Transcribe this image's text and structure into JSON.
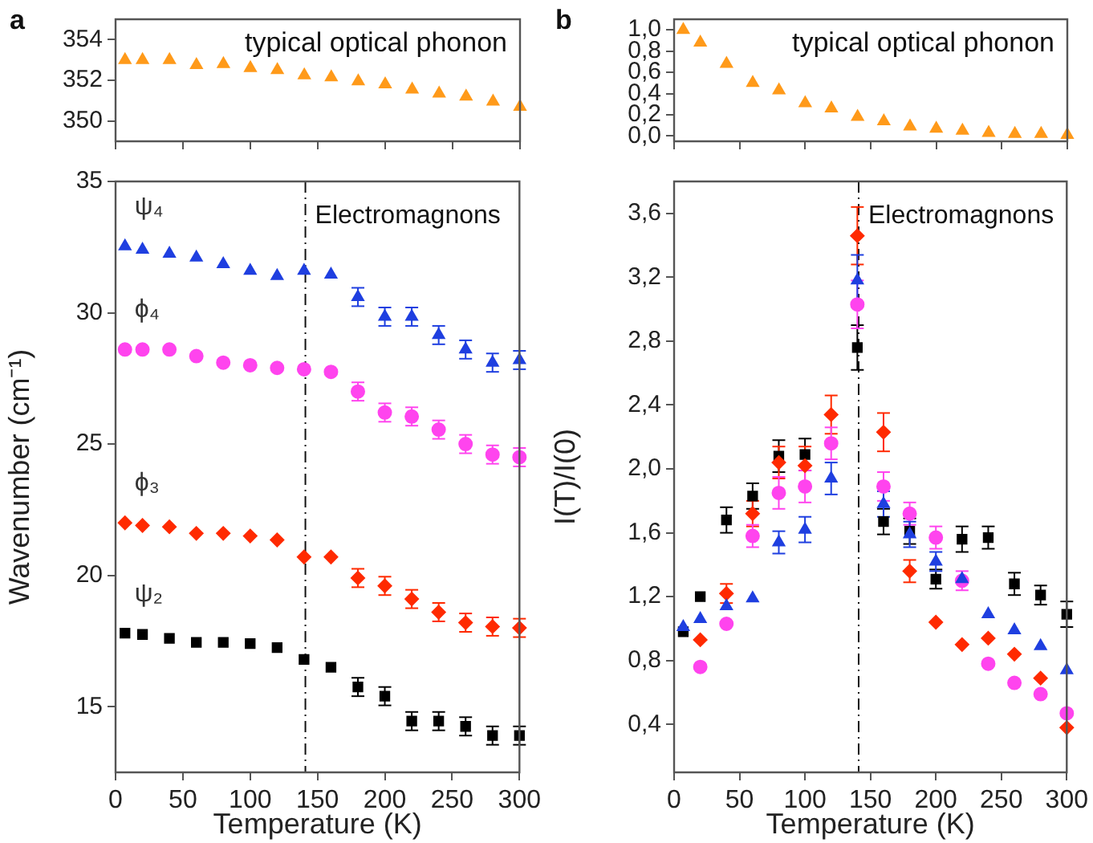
{
  "chart_data": [
    {
      "type": "scatter",
      "title": "typical optical phonon",
      "annotations": [
        "a"
      ],
      "x": [
        7,
        20,
        40,
        60,
        80,
        100,
        120,
        140,
        160,
        180,
        200,
        220,
        240,
        260,
        280,
        300
      ],
      "xlim": [
        0,
        300
      ],
      "xticks": [
        0,
        50,
        100,
        150,
        200,
        250,
        300
      ],
      "ylim": [
        349,
        355
      ],
      "yticks": [
        350,
        352,
        354
      ],
      "tick_labels": "y",
      "grid": false,
      "legend": false,
      "marker": "triangle",
      "series": [
        {
          "color": "#ff9a1a",
          "values": [
            353.0,
            353.0,
            353.0,
            352.75,
            352.8,
            352.6,
            352.5,
            352.25,
            352.15,
            351.95,
            351.8,
            351.55,
            351.35,
            351.2,
            350.95,
            350.7
          ]
        }
      ]
    },
    {
      "type": "scatter",
      "xlabel": "Temperature (K)",
      "ylabel": "Wavenumber (cm⁻¹)",
      "x": [
        7,
        20,
        40,
        60,
        80,
        100,
        120,
        140,
        160,
        180,
        200,
        220,
        240,
        260,
        280,
        300
      ],
      "xlim": [
        0,
        300
      ],
      "xticks": [
        0,
        50,
        100,
        150,
        200,
        250,
        300
      ],
      "ylim": [
        12.5,
        35
      ],
      "yticks": [
        15,
        20,
        25,
        30,
        35
      ],
      "grid": false,
      "legend": false,
      "ref_lines": [
        {
          "axis": "x",
          "value": 141,
          "label": "Electromagnons",
          "line_style": "dashdot"
        }
      ],
      "series": [
        {
          "name": "ψ₄",
          "color": "#1f3fe0",
          "marker": "triangle",
          "values": [
            32.53,
            32.4,
            32.25,
            32.1,
            31.85,
            31.6,
            31.4,
            31.6,
            31.45,
            30.6,
            29.85,
            29.85,
            29.15,
            28.6,
            28.1,
            28.2
          ],
          "errors": [
            null,
            null,
            null,
            null,
            null,
            null,
            null,
            null,
            null,
            0.35,
            0.35,
            0.35,
            0.35,
            0.35,
            0.35,
            0.35
          ]
        },
        {
          "name": "ϕ₄",
          "color": "#ff44ee",
          "marker": "circle",
          "values": [
            28.6,
            28.6,
            28.6,
            28.35,
            28.1,
            28.0,
            27.9,
            27.85,
            27.75,
            27.0,
            26.2,
            26.05,
            25.55,
            25.0,
            24.6,
            24.5
          ],
          "errors": [
            null,
            null,
            null,
            null,
            null,
            null,
            null,
            null,
            null,
            0.35,
            0.35,
            0.35,
            0.35,
            0.35,
            0.35,
            0.35
          ]
        },
        {
          "name": "ϕ₃",
          "color": "#ff2a00",
          "marker": "diamond",
          "values": [
            22.0,
            21.9,
            21.85,
            21.6,
            21.6,
            21.5,
            21.35,
            20.7,
            20.7,
            19.9,
            19.6,
            19.1,
            18.6,
            18.2,
            18.05,
            18.0
          ],
          "errors": [
            null,
            null,
            null,
            null,
            null,
            null,
            null,
            null,
            null,
            0.35,
            0.35,
            0.35,
            0.35,
            0.35,
            0.35,
            0.35
          ]
        },
        {
          "name": "ψ₂",
          "color": "#000000",
          "marker": "square",
          "values": [
            17.8,
            17.75,
            17.6,
            17.45,
            17.45,
            17.4,
            17.25,
            16.8,
            16.5,
            15.75,
            15.4,
            14.45,
            14.45,
            14.25,
            13.9,
            13.9
          ],
          "errors": [
            null,
            null,
            null,
            null,
            null,
            null,
            null,
            null,
            null,
            0.35,
            0.35,
            0.35,
            0.35,
            0.35,
            0.35,
            0.35
          ]
        }
      ]
    },
    {
      "type": "scatter",
      "title": "typical optical phonon",
      "annotations": [
        "b"
      ],
      "x": [
        7,
        20,
        40,
        60,
        80,
        100,
        120,
        140,
        160,
        180,
        200,
        220,
        240,
        260,
        280,
        300
      ],
      "xlim": [
        0,
        300
      ],
      "xticks": [
        0,
        50,
        100,
        150,
        200,
        250,
        300
      ],
      "ylim": [
        -0.05,
        1.1
      ],
      "yticks": [
        {
          "value": 0,
          "label": "0,0"
        },
        {
          "value": 0.2,
          "label": "0,2"
        },
        {
          "value": 0.4,
          "label": "0,4"
        },
        {
          "value": 0.6,
          "label": "0,6"
        },
        {
          "value": 0.8,
          "label": "0,8"
        },
        {
          "value": 1.0,
          "label": "1,0"
        }
      ],
      "tick_labels": "y",
      "grid": false,
      "legend": false,
      "marker": "triangle",
      "series": [
        {
          "color": "#ff9a1a",
          "values": [
            1.0,
            0.88,
            0.68,
            0.5,
            0.43,
            0.31,
            0.26,
            0.18,
            0.14,
            0.09,
            0.07,
            0.05,
            0.03,
            0.02,
            0.02,
            0.01
          ]
        }
      ]
    },
    {
      "type": "scatter",
      "xlabel": "Temperature (K)",
      "ylabel": "I(T)/I(0)",
      "x": [
        7,
        20,
        40,
        60,
        80,
        100,
        120,
        140,
        160,
        180,
        200,
        220,
        240,
        260,
        280,
        300
      ],
      "xlim": [
        0,
        300
      ],
      "xticks": [
        0,
        50,
        100,
        150,
        200,
        250,
        300
      ],
      "ylim": [
        0.1,
        3.8
      ],
      "yticks": [
        {
          "value": 0.4,
          "label": "0,4"
        },
        {
          "value": 0.8,
          "label": "0,8"
        },
        {
          "value": 1.2,
          "label": "1,2"
        },
        {
          "value": 1.6,
          "label": "1,6"
        },
        {
          "value": 2.0,
          "label": "2,0"
        },
        {
          "value": 2.4,
          "label": "2,4"
        },
        {
          "value": 2.8,
          "label": "2,8"
        },
        {
          "value": 3.2,
          "label": "3,2"
        },
        {
          "value": 3.6,
          "label": "3,6"
        }
      ],
      "grid": false,
      "legend": false,
      "ref_lines": [
        {
          "axis": "x",
          "value": 141,
          "label": "Electromagnons",
          "line_style": "dashdot"
        }
      ],
      "series": [
        {
          "color": "#000000",
          "marker": "square",
          "values": [
            0.98,
            1.2,
            1.68,
            1.83,
            2.08,
            2.09,
            null,
            2.76,
            1.67,
            1.61,
            1.31,
            1.56,
            1.57,
            1.28,
            1.21,
            1.09
          ],
          "errors": [
            null,
            null,
            0.08,
            0.08,
            0.1,
            0.1,
            null,
            0.14,
            0.08,
            0.08,
            0.06,
            0.08,
            0.07,
            0.07,
            0.06,
            0.08
          ]
        },
        {
          "color": "#ff2a00",
          "marker": "diamond",
          "values": [
            null,
            0.93,
            1.22,
            1.72,
            2.04,
            2.02,
            2.34,
            3.46,
            2.23,
            1.36,
            1.04,
            0.9,
            0.94,
            0.84,
            0.69,
            0.38
          ],
          "errors": [
            null,
            null,
            0.06,
            0.08,
            0.1,
            0.12,
            0.12,
            0.18,
            0.12,
            0.07,
            null,
            null,
            null,
            null,
            null,
            null
          ]
        },
        {
          "color": "#ff44ee",
          "marker": "circle",
          "values": [
            null,
            0.76,
            1.03,
            1.58,
            1.85,
            1.89,
            2.16,
            3.03,
            1.89,
            1.72,
            1.57,
            1.3,
            0.78,
            0.66,
            0.59,
            0.47
          ],
          "errors": [
            null,
            null,
            null,
            0.07,
            0.1,
            0.1,
            0.1,
            0.15,
            0.09,
            0.07,
            0.07,
            0.06,
            null,
            null,
            null,
            null
          ]
        },
        {
          "color": "#1f3fe0",
          "marker": "triangle",
          "values": [
            1.01,
            1.06,
            1.14,
            1.19,
            1.54,
            1.62,
            1.94,
            3.18,
            1.78,
            1.59,
            1.42,
            1.31,
            1.09,
            0.99,
            0.89,
            0.74
          ],
          "errors": [
            null,
            null,
            null,
            null,
            0.07,
            0.08,
            0.1,
            0.16,
            0.08,
            0.08,
            0.06,
            null,
            null,
            null,
            null,
            null
          ]
        }
      ]
    }
  ]
}
